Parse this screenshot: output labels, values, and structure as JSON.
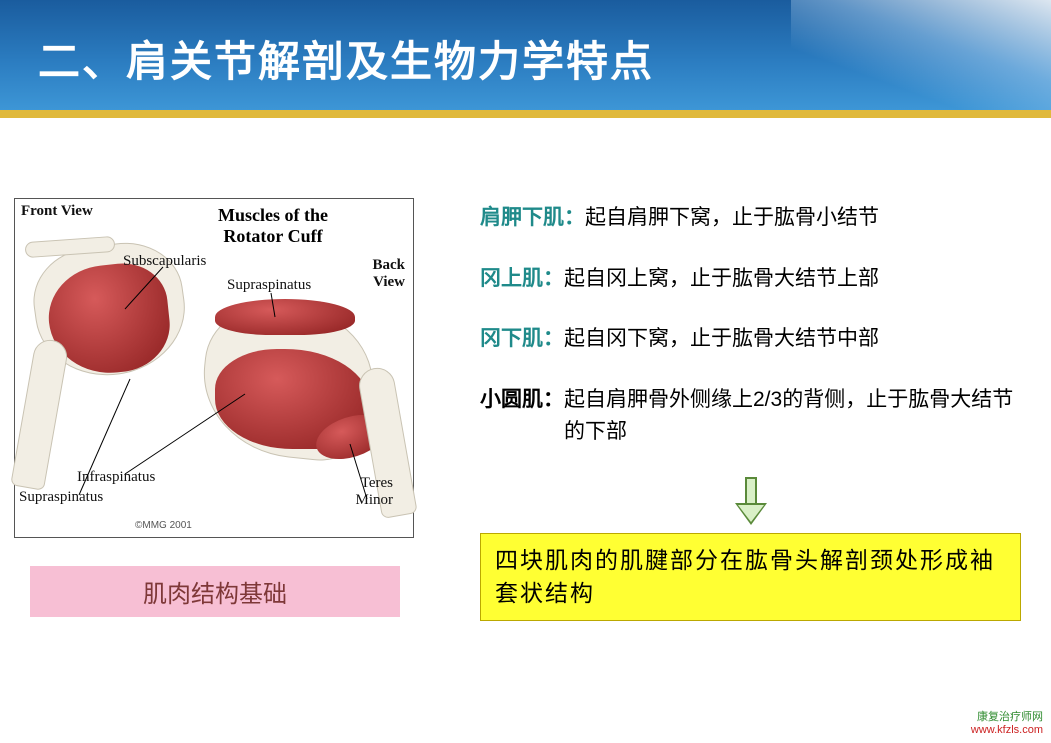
{
  "header": {
    "title": "二、肩关节解剖及生物力学特点",
    "bg_gradient_top": "#1a5c9e",
    "bg_gradient_bottom": "#3d96d6",
    "underline_color": "#e0b93c"
  },
  "figure": {
    "title": "Muscles of the Rotator Cuff",
    "front_view": "Front View",
    "back_view": "Back View",
    "labels": {
      "subscapularis": "Subscapularis",
      "supraspinatus_top": "Supraspinatus",
      "infraspinatus": "Infraspinatus",
      "supraspinatus_bottom": "Supraspinatus",
      "teres_minor": "Teres Minor"
    },
    "copyright": "©MMG 2001",
    "colors": {
      "muscle": "#9a2a2a",
      "muscle_highlight": "#d65a5a",
      "bone": "#f2eee4",
      "border": "#555555"
    }
  },
  "pink_caption": {
    "text": "肌肉结构基础",
    "bg": "#f7bfd4",
    "color": "#7e3838"
  },
  "muscles": [
    {
      "name": "肩胛下肌：",
      "desc": "起自肩胛下窝，止于肱骨小结节",
      "name_color": "teal"
    },
    {
      "name": "冈上肌：",
      "desc": "起自冈上窝，止于肱骨大结节上部",
      "name_color": "teal"
    },
    {
      "name": "冈下肌：",
      "desc": "起自冈下窝，止于肱骨大结节中部",
      "name_color": "teal"
    },
    {
      "name": "小圆肌：",
      "desc": "起自肩胛骨外侧缘上2/3的背侧，止于肱骨大结节的下部",
      "name_color": "black"
    }
  ],
  "yellow_summary": {
    "text": "四块肌肉的肌腱部分在肱骨头解剖颈处形成袖套状结构",
    "bg": "#ffff33"
  },
  "watermark": {
    "line1": "康复治疗师网",
    "line2": "www.kfzls.com"
  }
}
